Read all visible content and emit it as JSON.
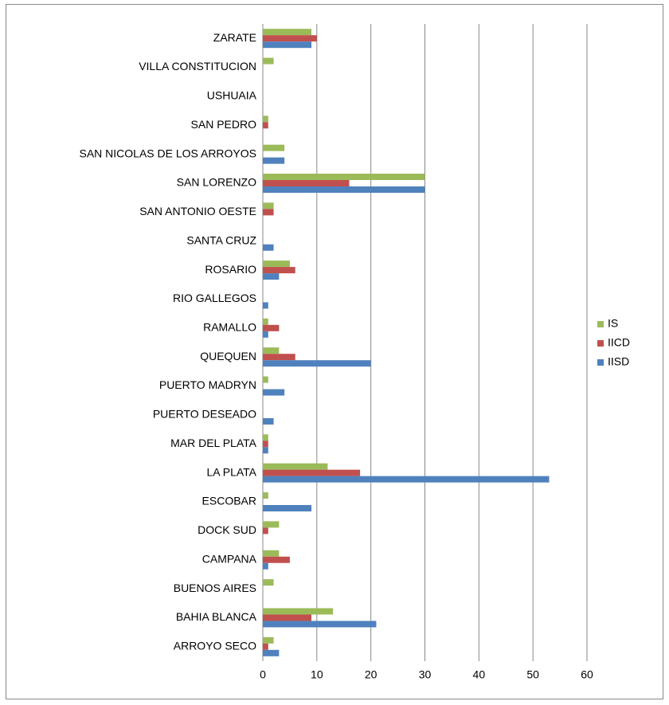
{
  "chart_data": {
    "type": "bar",
    "orientation": "horizontal",
    "categories": [
      "ARROYO SECO",
      "BAHIA BLANCA",
      "BUENOS AIRES",
      "CAMPANA",
      "DOCK SUD",
      "ESCOBAR",
      "LA PLATA",
      "MAR DEL PLATA",
      "PUERTO DESEADO",
      "PUERTO MADRYN",
      "QUEQUEN",
      "RAMALLO",
      "RIO GALLEGOS",
      "ROSARIO",
      "SANTA CRUZ",
      "SAN ANTONIO OESTE",
      "SAN LORENZO",
      "SAN NICOLAS DE LOS ARROYOS",
      "SAN PEDRO",
      "USHUAIA",
      "VILLA CONSTITUCION",
      "ZARATE"
    ],
    "series": [
      {
        "name": "IS",
        "color": "#9bbb59",
        "values": [
          2,
          13,
          2,
          3,
          3,
          1,
          12,
          1,
          0,
          1,
          3,
          1,
          0,
          5,
          0,
          2,
          30,
          4,
          1,
          0,
          2,
          9
        ]
      },
      {
        "name": "IICD",
        "color": "#c0504d",
        "values": [
          1,
          9,
          0,
          5,
          1,
          0,
          18,
          1,
          0,
          0,
          6,
          3,
          0,
          6,
          0,
          2,
          16,
          0,
          1,
          0,
          0,
          10
        ]
      },
      {
        "name": "IISD",
        "color": "#4f81bd",
        "values": [
          3,
          21,
          0,
          1,
          0,
          9,
          53,
          1,
          2,
          4,
          20,
          1,
          1,
          3,
          2,
          0,
          30,
          4,
          0,
          0,
          0,
          9
        ]
      }
    ],
    "xlim": [
      0,
      60
    ],
    "xticks": [
      0,
      10,
      20,
      30,
      40,
      50,
      60
    ],
    "grid": true,
    "legend": "right"
  }
}
